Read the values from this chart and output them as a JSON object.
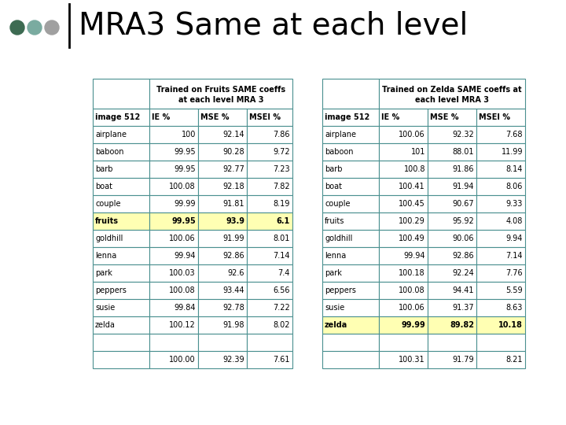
{
  "title": "MRA3 Same at each level",
  "slide_bg": "#ffffff",
  "title_color": "#000000",
  "title_fontsize": 28,
  "table1_header": "Trained on Fruits SAME coeffs\nat each level MRA 3",
  "table2_header": "Trained on Zelda SAME coeffs at\neach level MRA 3",
  "col_headers": [
    "image 512",
    "IE %",
    "MSE %",
    "MSEI %"
  ],
  "table1_rows": [
    [
      "airplane",
      "100",
      "92.14",
      "7.86"
    ],
    [
      "baboon",
      "99.95",
      "90.28",
      "9.72"
    ],
    [
      "barb",
      "99.95",
      "92.77",
      "7.23"
    ],
    [
      "boat",
      "100.08",
      "92.18",
      "7.82"
    ],
    [
      "couple",
      "99.99",
      "91.81",
      "8.19"
    ],
    [
      "fruits",
      "99.95",
      "93.9",
      "6.1"
    ],
    [
      "goldhill",
      "100.06",
      "91.99",
      "8.01"
    ],
    [
      "lenna",
      "99.94",
      "92.86",
      "7.14"
    ],
    [
      "park",
      "100.03",
      "92.6",
      "7.4"
    ],
    [
      "peppers",
      "100.08",
      "93.44",
      "6.56"
    ],
    [
      "susie",
      "99.84",
      "92.78",
      "7.22"
    ],
    [
      "zelda",
      "100.12",
      "91.98",
      "8.02"
    ],
    [
      "",
      "",
      "",
      ""
    ],
    [
      "",
      "100.00",
      "92.39",
      "7.61"
    ]
  ],
  "table2_rows": [
    [
      "airplane",
      "100.06",
      "92.32",
      "7.68"
    ],
    [
      "baboon",
      "101",
      "88.01",
      "11.99"
    ],
    [
      "barb",
      "100.8",
      "91.86",
      "8.14"
    ],
    [
      "boat",
      "100.41",
      "91.94",
      "8.06"
    ],
    [
      "couple",
      "100.45",
      "90.67",
      "9.33"
    ],
    [
      "fruits",
      "100.29",
      "95.92",
      "4.08"
    ],
    [
      "goldhill",
      "100.49",
      "90.06",
      "9.94"
    ],
    [
      "lenna",
      "99.94",
      "92.86",
      "7.14"
    ],
    [
      "park",
      "100.18",
      "92.24",
      "7.76"
    ],
    [
      "peppers",
      "100.08",
      "94.41",
      "5.59"
    ],
    [
      "susie",
      "100.06",
      "91.37",
      "8.63"
    ],
    [
      "zelda",
      "99.99",
      "89.82",
      "10.18"
    ],
    [
      "",
      "",
      "",
      ""
    ],
    [
      "",
      "100.31",
      "91.79",
      "8.21"
    ]
  ],
  "table1_highlight_row": 5,
  "table2_highlight_row": 11,
  "highlight_color": "#ffffb3",
  "dots_colors": [
    "#3d6b52",
    "#7aaba0",
    "#a0a0a0"
  ],
  "vline_color": "#000000",
  "table_border_color": "#4a9090"
}
